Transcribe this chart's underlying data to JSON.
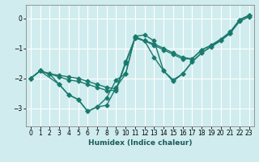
{
  "title": "",
  "xlabel": "Humidex (Indice chaleur)",
  "ylabel": "",
  "xlim": [
    -0.5,
    23.5
  ],
  "ylim": [
    -3.6,
    0.45
  ],
  "yticks": [
    0,
    -1,
    -2,
    -3
  ],
  "xticks": [
    0,
    1,
    2,
    3,
    4,
    5,
    6,
    7,
    8,
    9,
    10,
    11,
    12,
    13,
    14,
    15,
    16,
    17,
    18,
    19,
    20,
    21,
    22,
    23
  ],
  "bg_color": "#d0ecee",
  "grid_color": "#ffffff",
  "line_color": "#1a7a6e",
  "lines": [
    {
      "x": [
        0,
        1,
        2,
        3,
        4,
        5,
        6,
        7,
        8,
        9,
        10,
        11,
        12,
        13,
        14,
        15,
        16,
        17,
        18,
        19,
        20,
        21,
        22,
        23
      ],
      "y": [
        -2.0,
        -1.75,
        -1.85,
        -2.2,
        -2.55,
        -2.7,
        -3.1,
        -2.95,
        -2.9,
        -2.3,
        -1.85,
        -0.6,
        -0.75,
        -1.3,
        -1.75,
        -2.05,
        -1.85,
        -1.45,
        -1.15,
        -0.95,
        -0.75,
        -0.5,
        -0.1,
        0.05
      ]
    },
    {
      "x": [
        0,
        1,
        2,
        3,
        4,
        5,
        6,
        7,
        8,
        9,
        10,
        11,
        12,
        13,
        14,
        15,
        16,
        17,
        18,
        19,
        20,
        21,
        22,
        23
      ],
      "y": [
        -2.0,
        -1.75,
        -1.85,
        -1.95,
        -2.05,
        -2.1,
        -2.2,
        -2.3,
        -2.4,
        -2.4,
        -1.5,
        -0.65,
        -0.75,
        -0.9,
        -1.05,
        -1.2,
        -1.35,
        -1.35,
        -1.05,
        -0.9,
        -0.7,
        -0.5,
        -0.05,
        0.1
      ]
    },
    {
      "x": [
        0,
        1,
        2,
        3,
        4,
        5,
        6,
        7,
        8,
        9,
        10,
        11,
        12,
        13,
        14,
        15,
        16,
        17,
        18,
        19,
        20,
        21,
        22,
        23
      ],
      "y": [
        -2.0,
        -1.75,
        -1.85,
        -1.9,
        -1.95,
        -2.0,
        -2.1,
        -2.2,
        -2.3,
        -2.35,
        -1.45,
        -0.65,
        -0.75,
        -0.85,
        -1.0,
        -1.15,
        -1.3,
        -1.35,
        -1.05,
        -0.9,
        -0.7,
        -0.45,
        -0.05,
        0.1
      ]
    },
    {
      "x": [
        0,
        1,
        3,
        4,
        5,
        6,
        7,
        8,
        9,
        10,
        11,
        12,
        13,
        14,
        15,
        16,
        17,
        18,
        21,
        22,
        23
      ],
      "y": [
        -2.0,
        -1.75,
        -2.2,
        -2.55,
        -2.7,
        -3.1,
        -2.95,
        -2.65,
        -2.05,
        -1.85,
        -0.6,
        -0.55,
        -0.75,
        -1.75,
        -2.1,
        -1.85,
        -1.45,
        -1.15,
        -0.5,
        -0.05,
        0.1
      ]
    }
  ],
  "marker": "D",
  "markersize": 2.5,
  "linewidth": 1.0,
  "tick_fontsize": 5.5,
  "xlabel_fontsize": 6.5
}
